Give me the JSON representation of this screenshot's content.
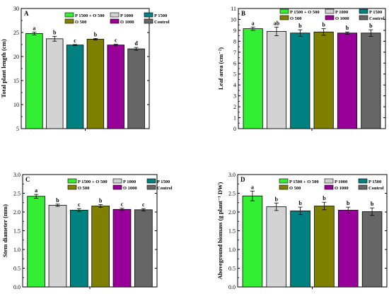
{
  "chart_data": [
    {
      "panel": "A",
      "type": "bar",
      "categories": [
        "P 1500 + O 500",
        "P 1000",
        "P 1500",
        "O 500",
        "O 1000",
        "Control"
      ],
      "values": [
        24.8,
        23.7,
        22.4,
        23.6,
        22.4,
        21.6
      ],
      "errors": [
        0.3,
        0.5,
        0.1,
        0.15,
        0.15,
        0.3
      ],
      "significance": [
        "a",
        "b",
        "c",
        "b",
        "c",
        "d"
      ],
      "ylabel": "Total plant length (cm)",
      "ylim": [
        5,
        30
      ],
      "yticks": [
        "5",
        "10",
        "15",
        "20",
        "25",
        "30"
      ]
    },
    {
      "panel": "B",
      "type": "bar",
      "categories": [
        "P 1500 + O 500",
        "P 1000",
        "P 1500",
        "O 500",
        "O 1000",
        "Control"
      ],
      "values": [
        9.15,
        8.9,
        8.75,
        8.85,
        8.75,
        8.75
      ],
      "errors": [
        0.15,
        0.4,
        0.3,
        0.3,
        0.1,
        0.3
      ],
      "significance": [
        "a",
        "ab",
        "b",
        "b",
        "b",
        "b"
      ],
      "ylabel": "Leaf area (cm⁻²)",
      "ylim": [
        0,
        11
      ],
      "yticks": [
        "0",
        "1",
        "2",
        "3",
        "4",
        "5",
        "6",
        "7",
        "8",
        "9",
        "10",
        "11"
      ]
    },
    {
      "panel": "C",
      "type": "bar",
      "categories": [
        "P 1500 + O 500",
        "P 1000",
        "P 1500",
        "O 500",
        "O 1000",
        "Control"
      ],
      "values": [
        2.42,
        2.18,
        2.05,
        2.16,
        2.07,
        2.06
      ],
      "errors": [
        0.05,
        0.03,
        0.04,
        0.04,
        0.03,
        0.03
      ],
      "significance": [
        "a",
        "b",
        "c",
        "b",
        "c",
        "c"
      ],
      "ylabel": "Stem diameter (mm)",
      "ylim": [
        0.0,
        3.0
      ],
      "yticks": [
        "0.0",
        "0.5",
        "1.0",
        "1.5",
        "2.0",
        "2.5",
        "3.0"
      ]
    },
    {
      "panel": "D",
      "type": "bar",
      "categories": [
        "P 1500 + O 500",
        "P 1000",
        "P 1500",
        "O 500",
        "O 1000",
        "Control"
      ],
      "values": [
        2.43,
        2.14,
        2.03,
        2.16,
        2.05,
        2.01
      ],
      "errors": [
        0.13,
        0.1,
        0.1,
        0.1,
        0.08,
        0.1
      ],
      "significance": [
        "a",
        "b",
        "b",
        "b",
        "b",
        "b"
      ],
      "ylabel": "Aboveground biomass (g plant⁻¹ DW)",
      "ylim": [
        0.0,
        3.0
      ],
      "yticks": [
        "0.0",
        "0.5",
        "1.0",
        "1.5",
        "2.0",
        "2.5",
        "3.0"
      ]
    }
  ],
  "legend": {
    "placement": "top-right",
    "items": [
      {
        "label": "P 1500 + O 500",
        "color": "#33ee33"
      },
      {
        "label": "P 1000",
        "color": "#d3d3d3"
      },
      {
        "label": "P 1500",
        "color": "#008080"
      },
      {
        "label": "O 500",
        "color": "#808000"
      },
      {
        "label": "O 1000",
        "color": "#990099"
      },
      {
        "label": "Control",
        "color": "#666666"
      }
    ]
  },
  "colors": [
    "#33ee33",
    "#d3d3d3",
    "#008080",
    "#808000",
    "#990099",
    "#666666"
  ],
  "grid": false
}
